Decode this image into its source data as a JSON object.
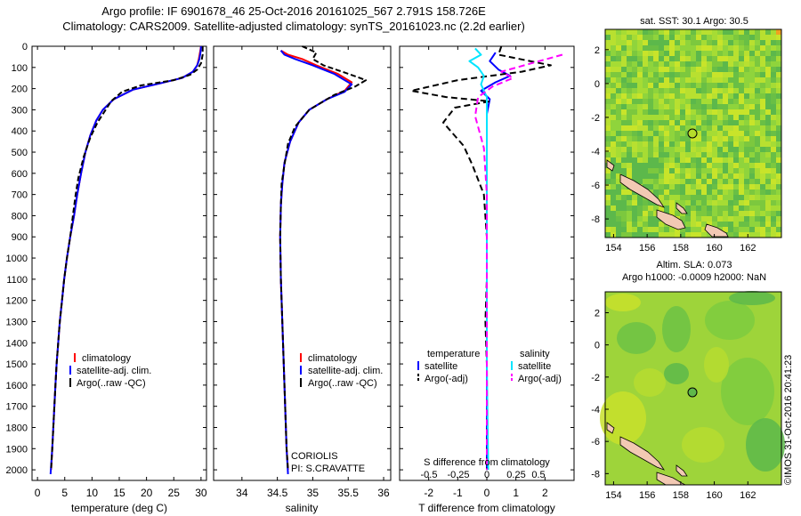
{
  "header": {
    "line1": "Argo profile: IF 6901678_46 25-Oct-2016 20161025_567 2.791S 158.726E",
    "line2": "Climatology: CARS2009. Satellite-adjusted climatology: synTS_20161023.nc (2.2d earlier)"
  },
  "map_sst": {
    "title": "sat. SST: 30.1 Argo: 30.5"
  },
  "map_sla": {
    "title1": "Altim. SLA: 0.073",
    "title2": "Argo h1000: -0.0009 h2000: NaN"
  },
  "footer": {
    "stamp": "©IMOS 31-Oct-2016 20:41:23"
  },
  "colors": {
    "climatology": "#ff0000",
    "satellite": "#0000ff",
    "argo": "#000000",
    "satellite_s": "#00e5ff",
    "argo_s": "#ff00ff"
  },
  "chart_data": [
    {
      "id": "temperature",
      "type": "line",
      "xlabel": "temperature (deg C)",
      "ylabel": "",
      "xlim": [
        -1,
        31
      ],
      "ylim": [
        2050,
        0
      ],
      "xticks": [
        0,
        5,
        10,
        15,
        20,
        25,
        30
      ],
      "yticks": [
        0,
        100,
        200,
        300,
        400,
        500,
        600,
        700,
        800,
        900,
        1000,
        1100,
        1200,
        1300,
        1400,
        1500,
        1600,
        1700,
        1800,
        1900,
        2000
      ],
      "legend": [
        "climatology",
        "satellite-adj. clim.",
        "Argo(..raw -QC)"
      ],
      "series": [
        {
          "name": "climatology",
          "color": "#ff0000",
          "dash": "",
          "points": [
            [
              30.0,
              0
            ],
            [
              29.8,
              30
            ],
            [
              29.6,
              60
            ],
            [
              29.3,
              90
            ],
            [
              28.5,
              120
            ],
            [
              26.5,
              150
            ],
            [
              22.5,
              175
            ],
            [
              17.5,
              205
            ],
            [
              14.0,
              250
            ],
            [
              12.0,
              300
            ],
            [
              10.8,
              350
            ],
            [
              9.7,
              420
            ],
            [
              8.8,
              500
            ],
            [
              8.0,
              600
            ],
            [
              7.3,
              700
            ],
            [
              6.7,
              800
            ],
            [
              6.0,
              900
            ],
            [
              5.4,
              1000
            ],
            [
              4.9,
              1100
            ],
            [
              4.5,
              1200
            ],
            [
              4.1,
              1300
            ],
            [
              3.8,
              1400
            ],
            [
              3.5,
              1500
            ],
            [
              3.3,
              1600
            ],
            [
              3.1,
              1700
            ],
            [
              2.9,
              1800
            ],
            [
              2.7,
              1900
            ],
            [
              2.5,
              2000
            ]
          ]
        },
        {
          "name": "satellite-adj. clim.",
          "color": "#0000ff",
          "dash": "",
          "points": [
            [
              30.0,
              0
            ],
            [
              29.9,
              30
            ],
            [
              29.7,
              60
            ],
            [
              29.3,
              90
            ],
            [
              28.5,
              120
            ],
            [
              26.5,
              150
            ],
            [
              22.5,
              175
            ],
            [
              17.5,
              205
            ],
            [
              14.0,
              250
            ],
            [
              12.0,
              300
            ],
            [
              10.8,
              350
            ],
            [
              9.7,
              420
            ],
            [
              8.8,
              500
            ],
            [
              8.0,
              600
            ],
            [
              7.3,
              700
            ],
            [
              6.7,
              800
            ],
            [
              6.0,
              900
            ],
            [
              5.4,
              1000
            ],
            [
              4.9,
              1100
            ],
            [
              4.5,
              1200
            ],
            [
              4.1,
              1300
            ],
            [
              3.8,
              1400
            ],
            [
              3.5,
              1500
            ],
            [
              3.3,
              1600
            ],
            [
              3.1,
              1700
            ],
            [
              2.9,
              1800
            ],
            [
              2.7,
              1900
            ],
            [
              2.4,
              2020
            ]
          ]
        },
        {
          "name": "Argo(..raw -QC)",
          "color": "#000000",
          "dash": "6,3",
          "points": [
            [
              30.3,
              0
            ],
            [
              30.3,
              40
            ],
            [
              30.0,
              80
            ],
            [
              29.3,
              110
            ],
            [
              28.0,
              135
            ],
            [
              25.0,
              160
            ],
            [
              19.0,
              185
            ],
            [
              15.5,
              215
            ],
            [
              13.5,
              260
            ],
            [
              12.5,
              300
            ],
            [
              11.0,
              360
            ],
            [
              9.7,
              430
            ],
            [
              8.5,
              520
            ],
            [
              7.5,
              620
            ],
            [
              7.0,
              700
            ],
            [
              6.5,
              800
            ],
            [
              6.0,
              900
            ],
            [
              5.4,
              1000
            ],
            [
              4.9,
              1100
            ],
            [
              4.5,
              1200
            ],
            [
              4.1,
              1300
            ],
            [
              3.8,
              1400
            ],
            [
              3.5,
              1500
            ],
            [
              3.3,
              1600
            ],
            [
              3.1,
              1700
            ],
            [
              2.9,
              1800
            ],
            [
              2.7,
              1900
            ],
            [
              2.5,
              2000
            ]
          ]
        }
      ]
    },
    {
      "id": "salinity",
      "type": "line",
      "xlabel": "salinity",
      "xlim": [
        33.6,
        36.1
      ],
      "ylim": [
        2050,
        0
      ],
      "xticks": [
        34,
        34.5,
        35,
        35.5,
        36
      ],
      "legend": [
        "climatology",
        "satellite-adj. clim.",
        "Argo(..raw -QC)"
      ],
      "annotation": [
        "CORIOLIS",
        "PI: S.CRAVATTE"
      ],
      "series": [
        {
          "name": "climatology",
          "color": "#ff0000",
          "dash": "",
          "points": [
            [
              34.55,
              20
            ],
            [
              34.65,
              40
            ],
            [
              34.85,
              60
            ],
            [
              35.05,
              90
            ],
            [
              35.35,
              130
            ],
            [
              35.55,
              170
            ],
            [
              35.45,
              210
            ],
            [
              35.2,
              250
            ],
            [
              34.95,
              300
            ],
            [
              34.8,
              360
            ],
            [
              34.68,
              450
            ],
            [
              34.6,
              550
            ],
            [
              34.57,
              650
            ],
            [
              34.55,
              750
            ],
            [
              34.54,
              900
            ],
            [
              34.55,
              1100
            ],
            [
              34.57,
              1300
            ],
            [
              34.59,
              1500
            ],
            [
              34.61,
              1700
            ],
            [
              34.63,
              1900
            ],
            [
              34.65,
              2000
            ]
          ]
        },
        {
          "name": "satellite-adj. clim.",
          "color": "#0000ff",
          "dash": "",
          "points": [
            [
              34.55,
              20
            ],
            [
              34.6,
              40
            ],
            [
              34.75,
              60
            ],
            [
              35.0,
              90
            ],
            [
              35.3,
              130
            ],
            [
              35.55,
              180
            ],
            [
              35.45,
              215
            ],
            [
              35.2,
              250
            ],
            [
              34.95,
              300
            ],
            [
              34.8,
              360
            ],
            [
              34.68,
              450
            ],
            [
              34.6,
              550
            ],
            [
              34.57,
              650
            ],
            [
              34.55,
              750
            ],
            [
              34.54,
              900
            ],
            [
              34.55,
              1100
            ],
            [
              34.57,
              1300
            ],
            [
              34.59,
              1500
            ],
            [
              34.61,
              1700
            ],
            [
              34.63,
              1900
            ],
            [
              34.65,
              2020
            ]
          ]
        },
        {
          "name": "Argo(..raw -QC)",
          "color": "#000000",
          "dash": "6,3",
          "points": [
            [
              34.85,
              0
            ],
            [
              35.05,
              30
            ],
            [
              35.0,
              60
            ],
            [
              35.15,
              90
            ],
            [
              35.5,
              130
            ],
            [
              35.75,
              160
            ],
            [
              35.6,
              190
            ],
            [
              35.3,
              230
            ],
            [
              34.95,
              300
            ],
            [
              34.75,
              380
            ],
            [
              34.65,
              460
            ],
            [
              34.6,
              560
            ],
            [
              34.56,
              650
            ],
            [
              34.55,
              750
            ],
            [
              34.54,
              900
            ],
            [
              34.55,
              1100
            ],
            [
              34.57,
              1300
            ],
            [
              34.59,
              1500
            ],
            [
              34.61,
              1700
            ],
            [
              34.63,
              1900
            ],
            [
              34.65,
              2000
            ]
          ]
        }
      ]
    },
    {
      "id": "difference",
      "type": "line",
      "xlabel": "T difference from climatology",
      "top_label": "S difference from climatology",
      "xlim": [
        -3,
        3
      ],
      "ylim": [
        2050,
        0
      ],
      "xticks": [
        -2,
        -1,
        0,
        1,
        2
      ],
      "top_ticks": [
        "-0.5",
        "-0.25",
        "0",
        "0.25",
        "0.5"
      ],
      "legend_groups": [
        {
          "title": "temperature",
          "items": [
            "satellite",
            "Argo(-adj)"
          ]
        },
        {
          "title": "salinity",
          "items": [
            "satellite",
            "Argo(-adj)"
          ]
        }
      ],
      "series": [
        {
          "name": "satellite",
          "group": "temperature",
          "color": "#0000ff",
          "dash": "",
          "points": [
            [
              0.3,
              30
            ],
            [
              0.1,
              70
            ],
            [
              0.4,
              110
            ],
            [
              0.8,
              140
            ],
            [
              0.3,
              170
            ],
            [
              -0.2,
              210
            ],
            [
              0.1,
              250
            ],
            [
              0.0,
              320
            ],
            [
              0.0,
              500
            ],
            [
              0.0,
              1000
            ],
            [
              0.0,
              1500
            ],
            [
              0.0,
              2000
            ]
          ]
        },
        {
          "name": "Argo(-adj)",
          "group": "temperature",
          "color": "#000000",
          "dash": "7,4",
          "points": [
            [
              0.5,
              0
            ],
            [
              0.4,
              40
            ],
            [
              2.2,
              90
            ],
            [
              1.2,
              120
            ],
            [
              -1.0,
              160
            ],
            [
              -2.6,
              210
            ],
            [
              -1.4,
              240
            ],
            [
              0.1,
              260
            ],
            [
              -1.1,
              290
            ],
            [
              -1.5,
              360
            ],
            [
              -0.8,
              470
            ],
            [
              -0.5,
              560
            ],
            [
              -0.1,
              700
            ],
            [
              0.0,
              900
            ],
            [
              0.0,
              1100
            ],
            [
              -0.05,
              1300
            ],
            [
              0.0,
              1500
            ],
            [
              0.0,
              1800
            ],
            [
              0.0,
              2000
            ]
          ]
        },
        {
          "name": "satellite",
          "group": "salinity",
          "color": "#00e5ff",
          "dash": "",
          "points": [
            [
              -0.4,
              10
            ],
            [
              -0.2,
              40
            ],
            [
              -0.6,
              70
            ],
            [
              -0.3,
              100
            ],
            [
              -0.1,
              140
            ],
            [
              -0.2,
              180
            ],
            [
              0.0,
              240
            ],
            [
              0.0,
              500
            ],
            [
              0.0,
              1000
            ],
            [
              0.0,
              1500
            ],
            [
              0.05,
              2000
            ]
          ]
        },
        {
          "name": "Argo(-adj)",
          "group": "salinity",
          "color": "#ff00ff",
          "dash": "7,4",
          "points": [
            [
              2.6,
              40
            ],
            [
              1.8,
              70
            ],
            [
              0.5,
              120
            ],
            [
              0.9,
              150
            ],
            [
              0.2,
              190
            ],
            [
              -0.3,
              240
            ],
            [
              -0.4,
              330
            ],
            [
              -0.1,
              480
            ],
            [
              0.0,
              700
            ],
            [
              0.0,
              1000
            ],
            [
              0.0,
              1500
            ],
            [
              0.0,
              2000
            ]
          ]
        }
      ]
    }
  ]
}
